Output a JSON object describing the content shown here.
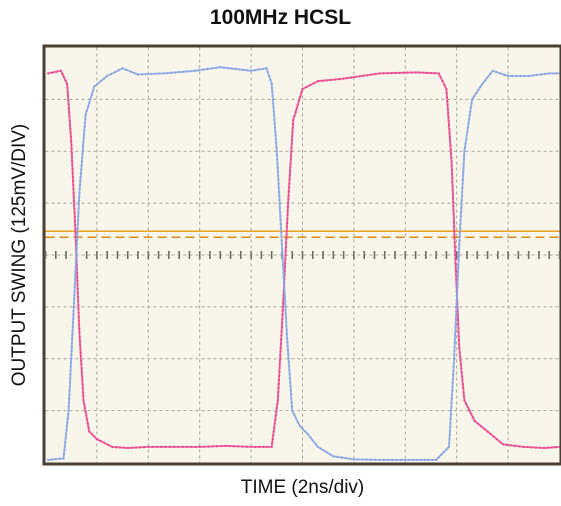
{
  "chart_data": {
    "type": "line",
    "title": "100MHz HCSL",
    "xlabel": "TIME (2ns/div)",
    "ylabel": "OUTPUT SWING (125mV/DIV)",
    "x_divisions": 10,
    "y_divisions": 8,
    "grid": true,
    "xlim": [
      0,
      10
    ],
    "ylim": [
      0,
      8
    ],
    "reference_level": 4.4,
    "series": [
      {
        "color": "#e8498f",
        "points": [
          [
            0.05,
            7.5
          ],
          [
            0.3,
            7.55
          ],
          [
            0.42,
            7.3
          ],
          [
            0.5,
            6.2
          ],
          [
            0.58,
            4.5
          ],
          [
            0.66,
            2.5
          ],
          [
            0.74,
            1.2
          ],
          [
            0.85,
            0.6
          ],
          [
            1.0,
            0.45
          ],
          [
            1.3,
            0.3
          ],
          [
            1.6,
            0.28
          ],
          [
            2.0,
            0.3
          ],
          [
            2.5,
            0.3
          ],
          [
            3.0,
            0.3
          ],
          [
            3.5,
            0.32
          ],
          [
            4.0,
            0.3
          ],
          [
            4.4,
            0.3
          ],
          [
            4.52,
            1.2
          ],
          [
            4.62,
            3.0
          ],
          [
            4.72,
            5.0
          ],
          [
            4.82,
            6.6
          ],
          [
            5.0,
            7.2
          ],
          [
            5.3,
            7.35
          ],
          [
            5.8,
            7.4
          ],
          [
            6.5,
            7.5
          ],
          [
            7.2,
            7.52
          ],
          [
            7.65,
            7.5
          ],
          [
            7.8,
            7.2
          ],
          [
            7.9,
            5.8
          ],
          [
            7.97,
            4.0
          ],
          [
            8.05,
            2.2
          ],
          [
            8.15,
            1.2
          ],
          [
            8.35,
            0.8
          ],
          [
            8.6,
            0.6
          ],
          [
            8.9,
            0.35
          ],
          [
            9.3,
            0.3
          ],
          [
            9.7,
            0.28
          ],
          [
            10.0,
            0.3
          ]
        ]
      },
      {
        "color": "#8aa5e3",
        "points": [
          [
            0.05,
            0.05
          ],
          [
            0.35,
            0.08
          ],
          [
            0.45,
            1.0
          ],
          [
            0.55,
            3.0
          ],
          [
            0.66,
            5.2
          ],
          [
            0.78,
            6.7
          ],
          [
            0.95,
            7.25
          ],
          [
            1.2,
            7.45
          ],
          [
            1.5,
            7.6
          ],
          [
            1.8,
            7.48
          ],
          [
            2.3,
            7.5
          ],
          [
            2.9,
            7.55
          ],
          [
            3.4,
            7.62
          ],
          [
            4.0,
            7.55
          ],
          [
            4.3,
            7.6
          ],
          [
            4.4,
            7.3
          ],
          [
            4.5,
            6.0
          ],
          [
            4.6,
            4.2
          ],
          [
            4.7,
            2.4
          ],
          [
            4.8,
            1.0
          ],
          [
            4.95,
            0.7
          ],
          [
            5.1,
            0.55
          ],
          [
            5.3,
            0.3
          ],
          [
            5.6,
            0.12
          ],
          [
            6.0,
            0.06
          ],
          [
            6.5,
            0.05
          ],
          [
            7.0,
            0.05
          ],
          [
            7.6,
            0.05
          ],
          [
            7.85,
            0.3
          ],
          [
            7.95,
            2.0
          ],
          [
            8.05,
            4.2
          ],
          [
            8.15,
            6.0
          ],
          [
            8.3,
            7.0
          ],
          [
            8.5,
            7.3
          ],
          [
            8.7,
            7.55
          ],
          [
            9.0,
            7.45
          ],
          [
            9.4,
            7.45
          ],
          [
            9.8,
            7.5
          ],
          [
            10.0,
            7.5
          ]
        ]
      }
    ]
  }
}
